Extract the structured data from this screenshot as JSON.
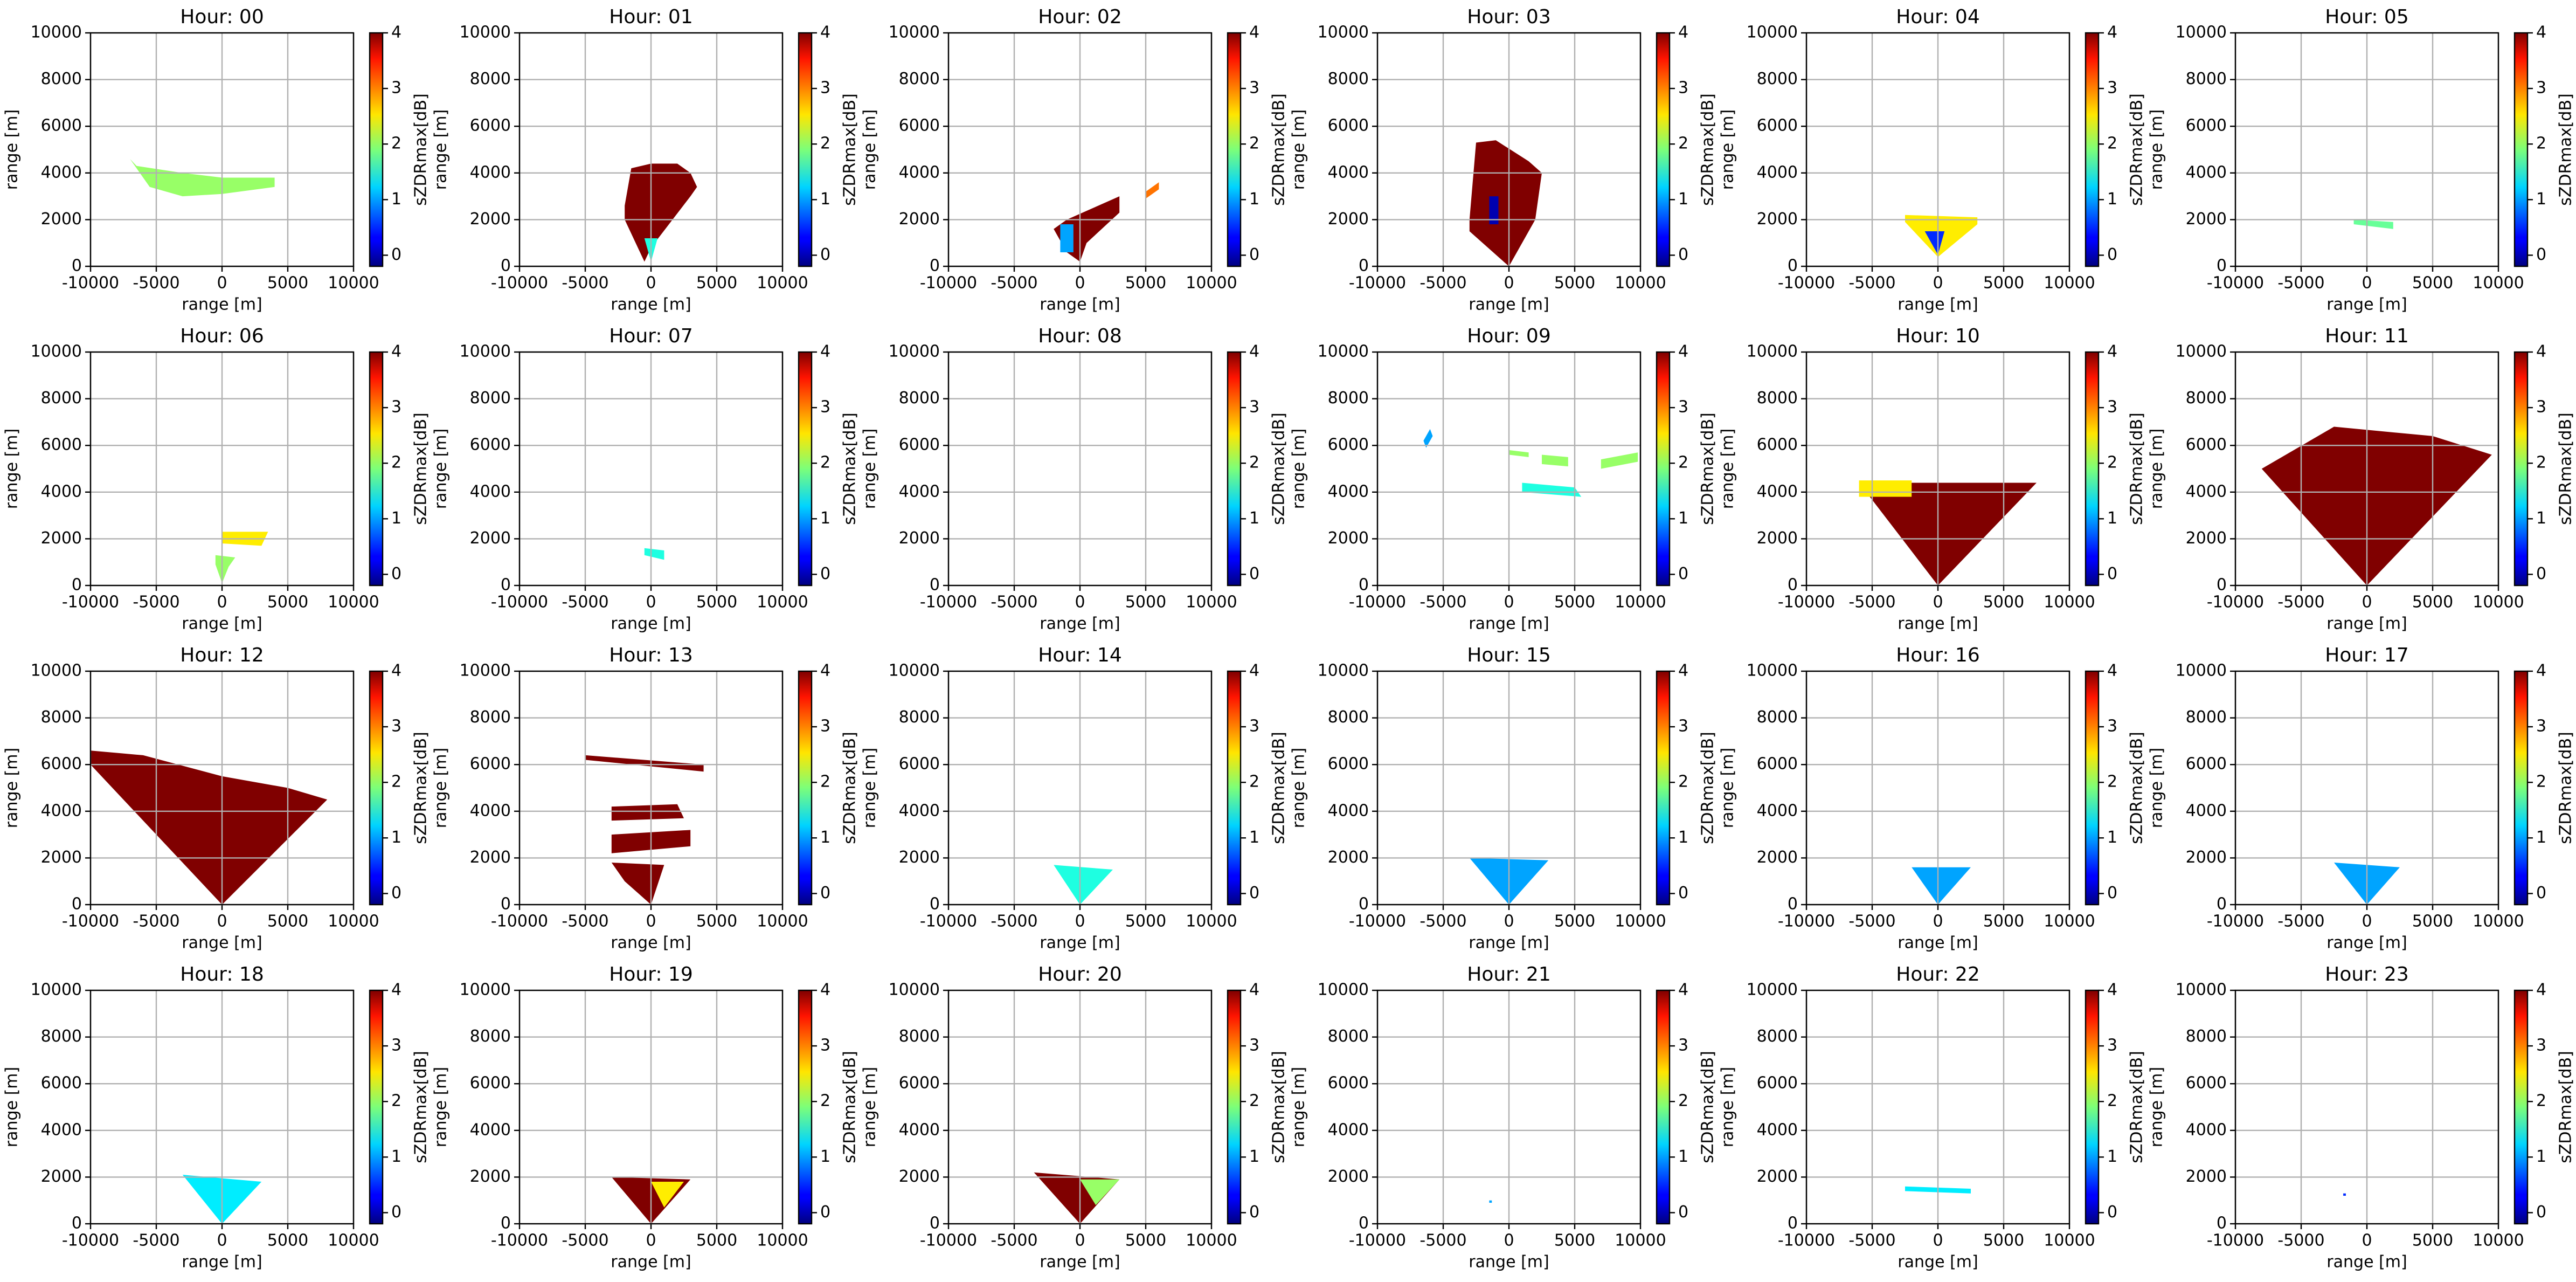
{
  "chart_data": {
    "type": "heatmap",
    "xlabel": "range [m]",
    "ylabel": "range [m]",
    "colorbar_label": "sZDRmax[dB]",
    "xlim": [
      -10000,
      10000
    ],
    "xticks": [
      -10000,
      -5000,
      0,
      5000,
      10000
    ],
    "ylim": [
      0,
      10000
    ],
    "yticks": [
      0,
      2000,
      4000,
      6000,
      8000,
      10000
    ],
    "clim": [
      -0.2,
      4
    ],
    "cticks": [
      0,
      1,
      2,
      3,
      4
    ],
    "colormap": "jet",
    "grid": true,
    "panels": [
      {
        "title": "Hour: 00",
        "regions": [
          {
            "x": [
              -7000,
              -6500,
              -3000,
              0,
              4000,
              4000,
              0,
              -3000,
              -5500
            ],
            "y": [
              4600,
              4300,
              4000,
              3800,
              3800,
              3400,
              3100,
              3000,
              3400
            ],
            "value": 2
          }
        ]
      },
      {
        "title": "Hour: 01",
        "regions": [
          {
            "x": [
              -2000,
              -1500,
              0,
              2000,
              3000,
              3500,
              3000,
              0,
              -500,
              -2000
            ],
            "y": [
              2600,
              4200,
              4400,
              4400,
              4000,
              3400,
              3000,
              800,
              200,
              2000
            ],
            "value": 4
          },
          {
            "x": [
              -500,
              500,
              0
            ],
            "y": [
              1200,
              1200,
              200
            ],
            "value": 1.5
          }
        ]
      },
      {
        "title": "Hour: 02",
        "regions": [
          {
            "x": [
              -2000,
              -1000,
              1000,
              3000,
              3000,
              500,
              0,
              -1000
            ],
            "y": [
              1600,
              2000,
              2500,
              3000,
              2300,
              1000,
              200,
              600
            ],
            "value": 4
          },
          {
            "x": [
              -1500,
              -500,
              -500,
              -1500
            ],
            "y": [
              1800,
              1800,
              600,
              600
            ],
            "value": 1
          },
          {
            "x": [
              5000,
              6000,
              6000,
              5000
            ],
            "y": [
              3200,
              3600,
              3300,
              2900
            ],
            "value": 3
          }
        ]
      },
      {
        "title": "Hour: 03",
        "regions": [
          {
            "x": [
              -3000,
              -2500,
              -1000,
              1500,
              2500,
              2000,
              0,
              -1000,
              -3000
            ],
            "y": [
              2000,
              5300,
              5400,
              4500,
              4000,
              2000,
              0,
              500,
              1500
            ],
            "value": 4
          },
          {
            "x": [
              -1500,
              -800,
              -800,
              -1500
            ],
            "y": [
              3000,
              3000,
              1800,
              1800
            ],
            "value": 0
          }
        ]
      },
      {
        "title": "Hour: 04",
        "regions": [
          {
            "x": [
              -2500,
              3000,
              3000,
              0,
              -2500
            ],
            "y": [
              2200,
              2100,
              1800,
              400,
              1900
            ],
            "value": 2.5
          },
          {
            "x": [
              -1000,
              500,
              0
            ],
            "y": [
              1500,
              1500,
              500
            ],
            "value": 0.5
          }
        ]
      },
      {
        "title": "Hour: 05",
        "regions": [
          {
            "x": [
              -1000,
              2000,
              2000,
              -1000
            ],
            "y": [
              2000,
              1900,
              1600,
              1800
            ],
            "value": 1.8
          }
        ]
      },
      {
        "title": "Hour: 06",
        "regions": [
          {
            "x": [
              0,
              3500,
              3000,
              0
            ],
            "y": [
              2300,
              2300,
              1700,
              1800
            ],
            "value": 2.5
          },
          {
            "x": [
              -500,
              1000,
              500,
              0,
              -500
            ],
            "y": [
              1300,
              1200,
              800,
              100,
              900
            ],
            "value": 2
          }
        ]
      },
      {
        "title": "Hour: 07",
        "regions": [
          {
            "x": [
              -500,
              1000,
              1000,
              -500
            ],
            "y": [
              1600,
              1500,
              1100,
              1300
            ],
            "value": 1.5
          }
        ]
      },
      {
        "title": "Hour: 08",
        "regions": []
      },
      {
        "title": "Hour: 09",
        "regions": [
          {
            "x": [
              -6500,
              -6000,
              -5800,
              -6300
            ],
            "y": [
              6200,
              6700,
              6400,
              5900
            ],
            "value": 1
          },
          {
            "x": [
              0,
              1500,
              1500,
              0
            ],
            "y": [
              5800,
              5700,
              5500,
              5600
            ],
            "value": 2
          },
          {
            "x": [
              2500,
              4500,
              4500,
              2500
            ],
            "y": [
              5600,
              5500,
              5100,
              5200
            ],
            "value": 2
          },
          {
            "x": [
              1000,
              5000,
              5500,
              1000
            ],
            "y": [
              4400,
              4200,
              3800,
              4000
            ],
            "value": 1.5
          },
          {
            "x": [
              7000,
              9800,
              9800,
              7000
            ],
            "y": [
              5400,
              5700,
              5300,
              5000
            ],
            "value": 2
          }
        ]
      },
      {
        "title": "Hour: 10",
        "regions": [
          {
            "x": [
              -6000,
              7500,
              0
            ],
            "y": [
              4400,
              4400,
              0
            ],
            "value": 4
          },
          {
            "x": [
              -6000,
              -2000,
              -2000,
              -6000
            ],
            "y": [
              4500,
              4500,
              3800,
              3800
            ],
            "value": 2.5
          }
        ]
      },
      {
        "title": "Hour: 11",
        "regions": [
          {
            "x": [
              -8000,
              -2500,
              5000,
              9500,
              0
            ],
            "y": [
              5000,
              6800,
              6400,
              5600,
              0
            ],
            "value": 4
          }
        ]
      },
      {
        "title": "Hour: 12",
        "regions": [
          {
            "x": [
              -10000,
              -6000,
              0,
              5000,
              8000,
              0,
              -10000
            ],
            "y": [
              6600,
              6400,
              5500,
              5000,
              4500,
              0,
              6000
            ],
            "value": 4
          }
        ]
      },
      {
        "title": "Hour: 13",
        "regions": [
          {
            "x": [
              -5000,
              4000,
              4000,
              -5000
            ],
            "y": [
              6400,
              6000,
              5700,
              6200
            ],
            "value": 4
          },
          {
            "x": [
              -3000,
              2000,
              2500,
              -3000
            ],
            "y": [
              4200,
              4300,
              3700,
              3600
            ],
            "value": 4
          },
          {
            "x": [
              -3000,
              3000,
              3000,
              -3000
            ],
            "y": [
              3000,
              3200,
              2500,
              2200
            ],
            "value": 4
          },
          {
            "x": [
              -3000,
              1000,
              0,
              -2000
            ],
            "y": [
              1800,
              1700,
              0,
              1000
            ],
            "value": 4
          }
        ]
      },
      {
        "title": "Hour: 14",
        "regions": [
          {
            "x": [
              -2000,
              2500,
              0
            ],
            "y": [
              1700,
              1500,
              0
            ],
            "value": 1.5
          }
        ]
      },
      {
        "title": "Hour: 15",
        "regions": [
          {
            "x": [
              -3000,
              3000,
              0
            ],
            "y": [
              2000,
              1900,
              0
            ],
            "value": 1
          }
        ]
      },
      {
        "title": "Hour: 16",
        "regions": [
          {
            "x": [
              -2000,
              2500,
              0
            ],
            "y": [
              1600,
              1600,
              0
            ],
            "value": 1
          }
        ]
      },
      {
        "title": "Hour: 17",
        "regions": [
          {
            "x": [
              -2500,
              2500,
              0
            ],
            "y": [
              1800,
              1600,
              0
            ],
            "value": 1
          }
        ]
      },
      {
        "title": "Hour: 18",
        "regions": [
          {
            "x": [
              -3000,
              3000,
              0
            ],
            "y": [
              2100,
              1800,
              0
            ],
            "value": 1.3
          }
        ]
      },
      {
        "title": "Hour: 19",
        "regions": [
          {
            "x": [
              -3000,
              3000,
              0
            ],
            "y": [
              2000,
              1900,
              0
            ],
            "value": 4
          },
          {
            "x": [
              0,
              2500,
              1000
            ],
            "y": [
              1800,
              1800,
              700
            ],
            "value": 2.5
          }
        ]
      },
      {
        "title": "Hour: 20",
        "regions": [
          {
            "x": [
              -3500,
              3000,
              0
            ],
            "y": [
              2200,
              1900,
              0
            ],
            "value": 4
          },
          {
            "x": [
              0,
              3000,
              1200
            ],
            "y": [
              1900,
              1900,
              800
            ],
            "value": 2
          }
        ]
      },
      {
        "title": "Hour: 21",
        "regions": [
          {
            "x": [
              -1500,
              -1300,
              -1300,
              -1500
            ],
            "y": [
              1000,
              1000,
              900,
              900
            ],
            "value": 1
          }
        ]
      },
      {
        "title": "Hour: 22",
        "regions": [
          {
            "x": [
              -2500,
              2500,
              2500,
              -2500
            ],
            "y": [
              1600,
              1500,
              1300,
              1400
            ],
            "value": 1.3
          }
        ]
      },
      {
        "title": "Hour: 23",
        "regions": [
          {
            "x": [
              -1800,
              -1600,
              -1600,
              -1800
            ],
            "y": [
              1300,
              1300,
              1200,
              1200
            ],
            "value": 0.5
          }
        ]
      }
    ]
  }
}
